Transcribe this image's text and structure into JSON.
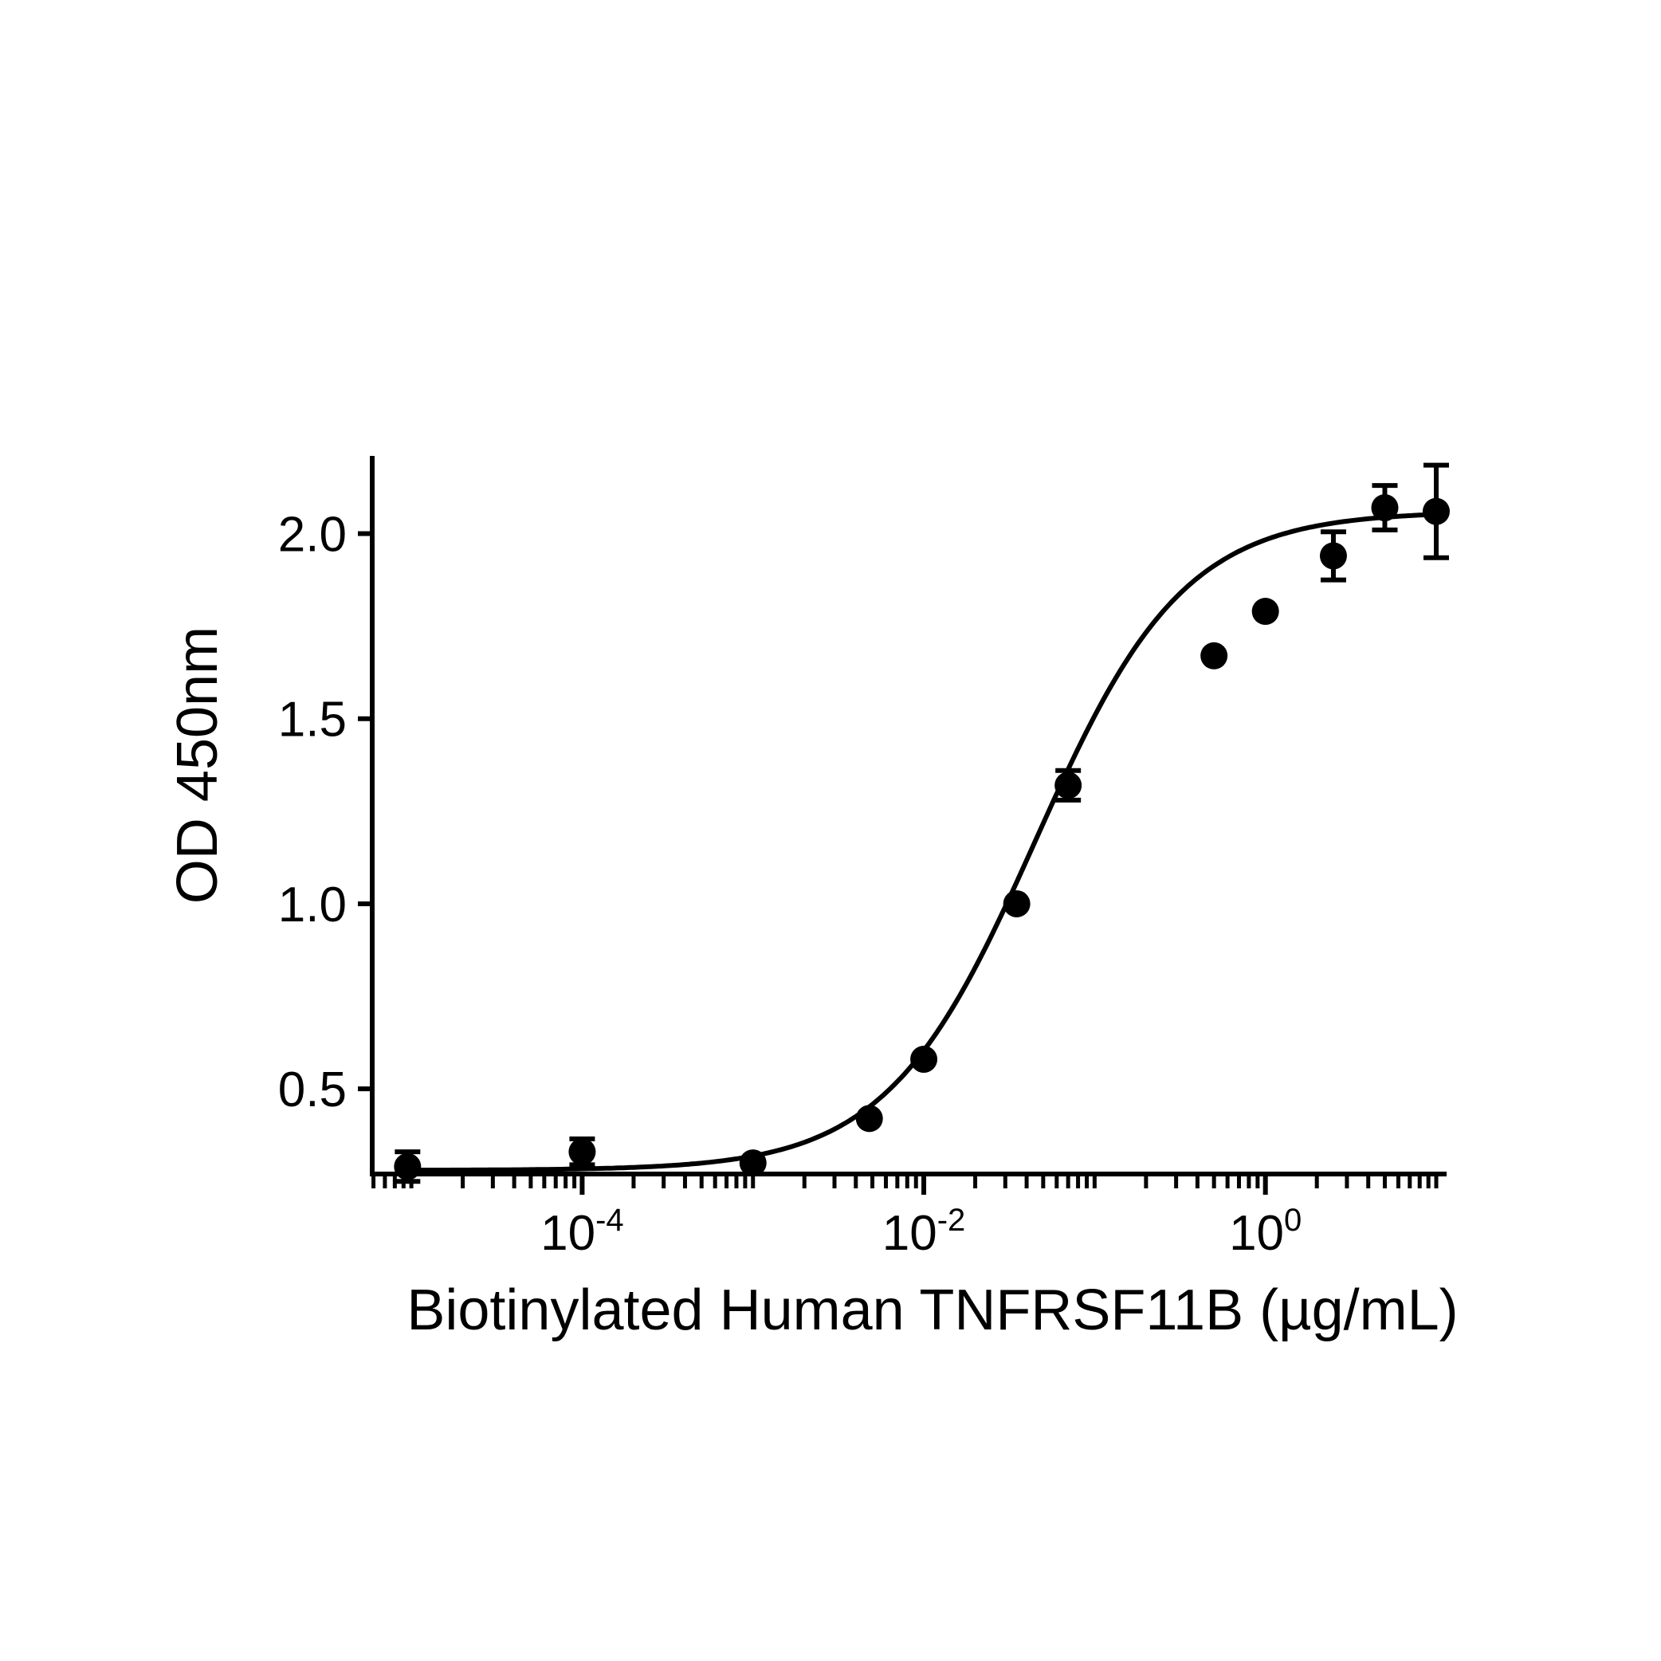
{
  "chart_data": {
    "type": "scatter",
    "xlabel": "Biotinylated Human TNFRSF11B (µg/mL)",
    "ylabel": "OD 450nm",
    "xscale": "log10",
    "xlim": [
      5.9e-06,
      11.5
    ],
    "ylim": [
      0.27,
      2.21
    ],
    "x_ticks": [
      {
        "value": 0.0001,
        "base": "10",
        "exp": "-4"
      },
      {
        "value": 0.01,
        "base": "10",
        "exp": "-2"
      },
      {
        "value": 1,
        "base": "10",
        "exp": "0"
      }
    ],
    "y_ticks": [
      {
        "value": 0.5,
        "label": "0.5"
      },
      {
        "value": 1.0,
        "label": "1.0"
      },
      {
        "value": 1.5,
        "label": "1.5"
      },
      {
        "value": 2.0,
        "label": "2.0"
      }
    ],
    "points": [
      {
        "x": 9.5e-06,
        "y": 0.29,
        "err": 0.04
      },
      {
        "x": 0.0001,
        "y": 0.33,
        "err": 0.035
      },
      {
        "x": 0.001,
        "y": 0.3,
        "err": 0.0
      },
      {
        "x": 0.0048,
        "y": 0.42,
        "err": 0.0
      },
      {
        "x": 0.01,
        "y": 0.58,
        "err": 0.0
      },
      {
        "x": 0.035,
        "y": 1.0,
        "err": 0.0
      },
      {
        "x": 0.07,
        "y": 1.32,
        "err": 0.04
      },
      {
        "x": 0.5,
        "y": 1.67,
        "err": 0.0
      },
      {
        "x": 1.0,
        "y": 1.79,
        "err": 0.0
      },
      {
        "x": 2.5,
        "y": 1.94,
        "err": 0.065
      },
      {
        "x": 5.0,
        "y": 2.07,
        "err": 0.06
      },
      {
        "x": 10.0,
        "y": 2.06,
        "err": 0.125
      }
    ],
    "fit": {
      "model": "4PL",
      "bottom": 0.28,
      "top": 2.06,
      "ec50": 0.045,
      "hill": 1.0
    },
    "grid": false,
    "legend": "none",
    "color": "#000000"
  }
}
